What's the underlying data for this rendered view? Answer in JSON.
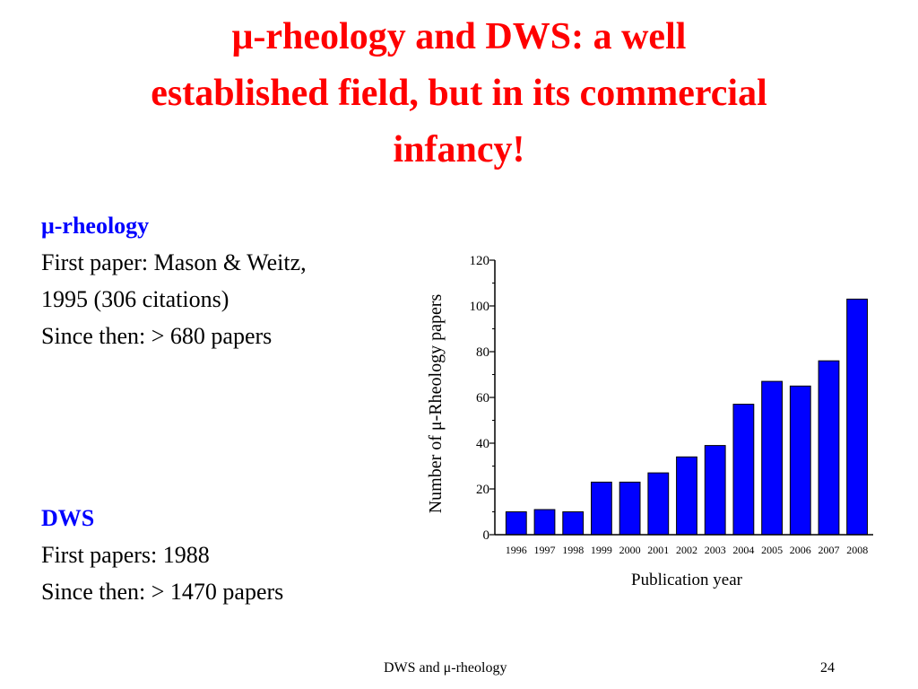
{
  "slide": {
    "title_lines": [
      "μ-rheology and DWS: a well",
      "established field, but in its commercial",
      "infancy!"
    ],
    "rheology": {
      "heading": "μ-rheology",
      "lines": [
        "First paper: Mason & Weitz,",
        "1995 (306 citations)",
        "Since then: > 680 papers"
      ]
    },
    "dws": {
      "heading": "DWS",
      "lines": [
        "First papers: 1988",
        "Since then: > 1470 papers"
      ]
    },
    "footer_title": "DWS and μ-rheology",
    "page_number": "24"
  },
  "colors": {
    "title": "#ff0000",
    "heading": "#0000ff",
    "bar": "#0000ff"
  },
  "chart_data": {
    "type": "bar",
    "categories": [
      "1996",
      "1997",
      "1998",
      "1999",
      "2000",
      "2001",
      "2002",
      "2003",
      "2004",
      "2005",
      "2006",
      "2007",
      "2008"
    ],
    "values": [
      10,
      11,
      10,
      23,
      23,
      27,
      34,
      39,
      57,
      67,
      65,
      76,
      103
    ],
    "xlabel": "Publication year",
    "ylabel": "Number of μ-Rheology papers",
    "ylim": [
      0,
      120
    ],
    "yticks": [
      0,
      20,
      40,
      60,
      80,
      100,
      120
    ],
    "grid": false,
    "bar_color": "#0000ff"
  }
}
